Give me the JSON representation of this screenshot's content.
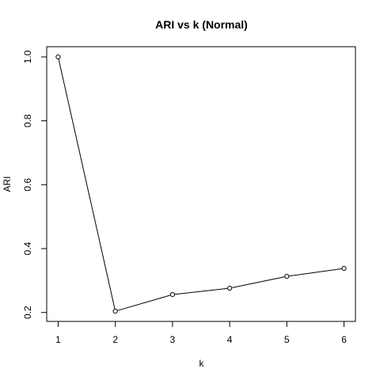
{
  "chart_data": {
    "type": "line",
    "title": "ARI vs k (Normal)",
    "xlabel": "k",
    "ylabel": "ARI",
    "x": [
      1,
      2,
      3,
      4,
      5,
      6
    ],
    "y": [
      1.0,
      0.204,
      0.256,
      0.276,
      0.313,
      0.338
    ],
    "xticks": [
      "1",
      "2",
      "3",
      "4",
      "5",
      "6"
    ],
    "yticks": [
      "0.2",
      "0.4",
      "0.6",
      "0.8",
      "1.0"
    ],
    "xlim": [
      0.8,
      6.2
    ],
    "ylim": [
      0.172,
      1.032
    ],
    "grid": false,
    "colors": {
      "line": "#000000",
      "point_fill": "#ffffff",
      "axis": "#000000"
    }
  }
}
